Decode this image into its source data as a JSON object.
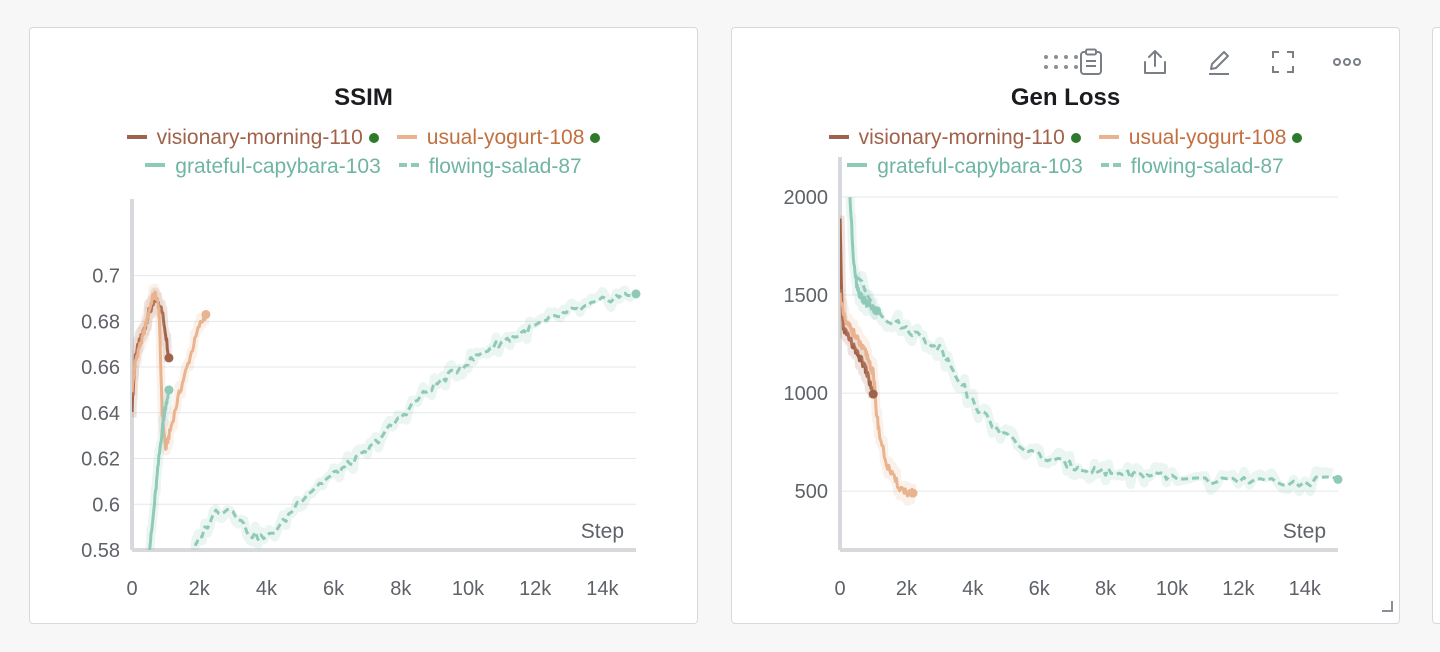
{
  "panels": [
    {
      "title": "SSIM",
      "legend": [
        {
          "name": "visionary-morning-110",
          "color": "#a0624a",
          "style": "solid",
          "dot": true
        },
        {
          "name": "usual-yogurt-108",
          "color": "#e8b38e",
          "style": "solid",
          "dot": true
        },
        {
          "name": "grateful-capybara-103",
          "color": "#8fcab9",
          "style": "solid",
          "dot": false
        },
        {
          "name": "flowing-salad-87",
          "color": "#8fcab9",
          "style": "dashed",
          "dot": false
        }
      ],
      "toolbar": []
    },
    {
      "title": "Gen Loss",
      "legend": [
        {
          "name": "visionary-morning-110",
          "color": "#a0624a",
          "style": "solid",
          "dot": true
        },
        {
          "name": "usual-yogurt-108",
          "color": "#e8b38e",
          "style": "solid",
          "dot": true
        },
        {
          "name": "grateful-capybara-103",
          "color": "#8fcab9",
          "style": "solid",
          "dot": false
        },
        {
          "name": "flowing-salad-87",
          "color": "#8fcab9",
          "style": "dashed",
          "dot": false
        }
      ],
      "toolbar": [
        "clipboard-icon",
        "share-icon",
        "edit-icon",
        "fullscreen-icon",
        "more-icon"
      ]
    }
  ],
  "legend_text_colors": {
    "visionary-morning-110": "#a0624a",
    "usual-yogurt-108": "#c2703f",
    "grateful-capybara-103": "#6fb5a2",
    "flowing-salad-87": "#6fb5a2"
  },
  "chart_data": [
    {
      "type": "line",
      "title": "SSIM",
      "xlabel": "Step",
      "ylabel": "",
      "xlim": [
        0,
        15000
      ],
      "ylim": [
        0.58,
        0.716
      ],
      "x_ticks": [
        0,
        2000,
        4000,
        6000,
        8000,
        10000,
        12000,
        14000
      ],
      "x_tick_labels": [
        "0",
        "2k",
        "4k",
        "6k",
        "8k",
        "10k",
        "12k",
        "14k"
      ],
      "y_ticks": [
        0.58,
        0.6,
        0.62,
        0.64,
        0.66,
        0.68,
        0.7
      ],
      "y_tick_labels": [
        "0.58",
        "0.6",
        "0.62",
        "0.64",
        "0.66",
        "0.68",
        "0.7"
      ],
      "grid": true,
      "series": [
        {
          "name": "visionary-morning-110",
          "color": "#a0624a",
          "style": "solid",
          "x": [
            0,
            100,
            200,
            300,
            400,
            500,
            600,
            700,
            800,
            900,
            1000,
            1100
          ],
          "y": [
            0.642,
            0.665,
            0.67,
            0.674,
            0.678,
            0.684,
            0.686,
            0.69,
            0.688,
            0.684,
            0.675,
            0.664
          ]
        },
        {
          "name": "usual-yogurt-108",
          "color": "#e8b38e",
          "style": "solid",
          "x": [
            0,
            100,
            200,
            300,
            400,
            500,
            600,
            700,
            800,
            900,
            1000,
            1100,
            1200,
            1400,
            1600,
            1800,
            2000,
            2200
          ],
          "y": [
            0.65,
            0.662,
            0.668,
            0.672,
            0.678,
            0.684,
            0.69,
            0.692,
            0.686,
            0.64,
            0.624,
            0.63,
            0.636,
            0.648,
            0.658,
            0.668,
            0.678,
            0.683
          ]
        },
        {
          "name": "grateful-capybara-103",
          "color": "#8fcab9",
          "style": "solid",
          "x": [
            500,
            600,
            700,
            800,
            900,
            1000,
            1100
          ],
          "y": [
            0.578,
            0.59,
            0.605,
            0.62,
            0.633,
            0.643,
            0.65
          ]
        },
        {
          "name": "flowing-salad-87",
          "color": "#8fcab9",
          "style": "dashed",
          "x": [
            1800,
            2000,
            2500,
            3000,
            3500,
            4000,
            4500,
            5000,
            5500,
            6000,
            6500,
            7000,
            7500,
            8000,
            8500,
            9000,
            9500,
            10000,
            10500,
            11000,
            11500,
            12000,
            12500,
            13000,
            13500,
            14000,
            14500,
            15000
          ],
          "y": [
            0.578,
            0.585,
            0.597,
            0.598,
            0.587,
            0.585,
            0.592,
            0.602,
            0.608,
            0.613,
            0.618,
            0.623,
            0.631,
            0.638,
            0.646,
            0.652,
            0.657,
            0.662,
            0.667,
            0.671,
            0.674,
            0.678,
            0.681,
            0.684,
            0.686,
            0.689,
            0.691,
            0.692
          ]
        }
      ]
    },
    {
      "type": "line",
      "title": "Gen Loss",
      "xlabel": "Step",
      "ylabel": "",
      "xlim": [
        0,
        15000
      ],
      "ylim": [
        200,
        2000
      ],
      "x_ticks": [
        0,
        2000,
        4000,
        6000,
        8000,
        10000,
        12000,
        14000
      ],
      "x_tick_labels": [
        "0",
        "2k",
        "4k",
        "6k",
        "8k",
        "10k",
        "12k",
        "14k"
      ],
      "y_ticks": [
        500,
        1000,
        1500,
        2000
      ],
      "y_tick_labels": [
        "500",
        "1000",
        "1500",
        "2000"
      ],
      "grid": true,
      "series": [
        {
          "name": "visionary-morning-110",
          "color": "#a0624a",
          "style": "solid",
          "x": [
            0,
            50,
            100,
            200,
            300,
            400,
            500,
            600,
            700,
            800,
            900,
            1000
          ],
          "y": [
            1880,
            1500,
            1320,
            1310,
            1270,
            1240,
            1200,
            1180,
            1150,
            1110,
            1050,
            995
          ]
        },
        {
          "name": "usual-yogurt-108",
          "color": "#e8b38e",
          "style": "solid",
          "x": [
            0,
            100,
            200,
            300,
            400,
            500,
            600,
            700,
            800,
            900,
            1000,
            1100,
            1200,
            1400,
            1600,
            1800,
            2000,
            2200
          ],
          "y": [
            1500,
            1400,
            1350,
            1340,
            1310,
            1280,
            1250,
            1220,
            1200,
            1150,
            1100,
            900,
            780,
            640,
            570,
            520,
            495,
            490
          ]
        },
        {
          "name": "grateful-capybara-103",
          "color": "#8fcab9",
          "style": "solid",
          "x": [
            300,
            400,
            500,
            600,
            700,
            800,
            900,
            1000,
            1100
          ],
          "y": [
            2000,
            1700,
            1560,
            1500,
            1480,
            1460,
            1450,
            1430,
            1420
          ]
        },
        {
          "name": "flowing-salad-87",
          "color": "#8fcab9",
          "style": "dashed",
          "x": [
            500,
            1000,
            1500,
            2000,
            2500,
            3000,
            3500,
            4000,
            4500,
            5000,
            5500,
            6000,
            6500,
            7000,
            7500,
            8000,
            8500,
            9000,
            9500,
            10000,
            11000,
            12000,
            13000,
            14000,
            15000
          ],
          "y": [
            1600,
            1450,
            1370,
            1330,
            1280,
            1230,
            1100,
            950,
            860,
            780,
            720,
            680,
            650,
            630,
            610,
            600,
            590,
            585,
            575,
            570,
            560,
            550,
            545,
            545,
            560
          ]
        }
      ]
    }
  ]
}
